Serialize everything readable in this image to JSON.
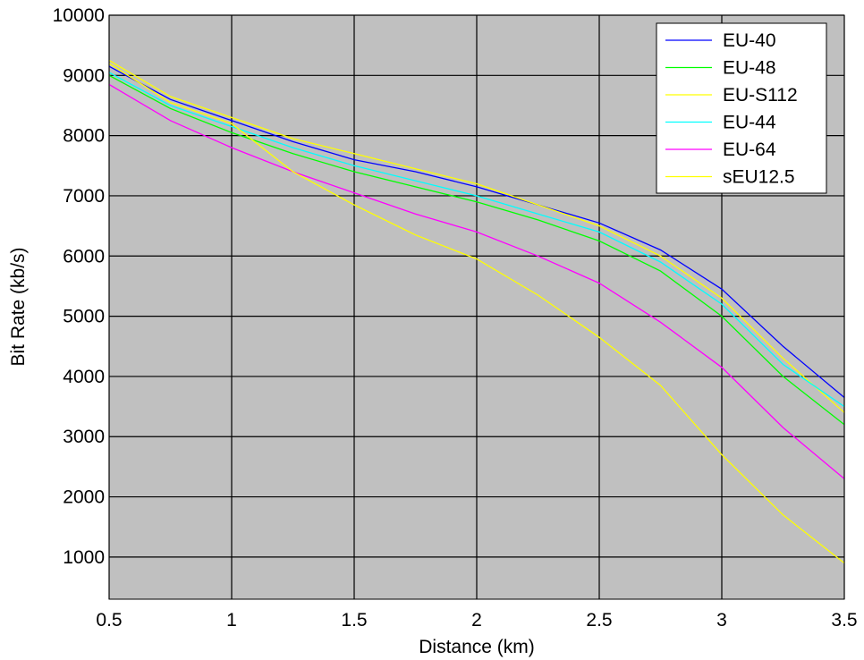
{
  "chart_data": {
    "type": "line",
    "title": "",
    "xlabel": "Distance (km)",
    "ylabel": "Bit Rate (kb/s)",
    "xlim": [
      0.5,
      3.5
    ],
    "ylim": [
      300,
      10000
    ],
    "xticks": [
      0.5,
      1,
      1.5,
      2,
      2.5,
      3,
      3.5
    ],
    "xtick_labels": [
      "0.5",
      "1",
      "1.5",
      "2",
      "2.5",
      "3",
      "3.5"
    ],
    "yticks": [
      1000,
      2000,
      3000,
      4000,
      5000,
      6000,
      7000,
      8000,
      9000,
      10000
    ],
    "ytick_labels": [
      "1000",
      "2000",
      "3000",
      "4000",
      "5000",
      "6000",
      "7000",
      "8000",
      "9000",
      "10000"
    ],
    "grid": true,
    "legend_position": "top-right",
    "background_color": "#c0c0c0",
    "x": [
      0.5,
      0.75,
      1,
      1.25,
      1.5,
      1.75,
      2,
      2.25,
      2.5,
      2.75,
      3,
      3.25,
      3.5
    ],
    "series": [
      {
        "name": "EU-40",
        "color": "#0000ff",
        "values": [
          9150,
          8600,
          8250,
          7900,
          7600,
          7400,
          7150,
          6850,
          6550,
          6100,
          5450,
          4500,
          3650
        ]
      },
      {
        "name": "EU-48",
        "color": "#00ff00",
        "values": [
          9000,
          8450,
          8050,
          7700,
          7400,
          7150,
          6900,
          6600,
          6250,
          5750,
          5000,
          4000,
          3200
        ]
      },
      {
        "name": "EU-S112",
        "color": "#ffff00",
        "values": [
          9250,
          8650,
          8300,
          7950,
          7700,
          7450,
          7200,
          6850,
          6500,
          6000,
          5300,
          4300,
          3400
        ]
      },
      {
        "name": "EU-44",
        "color": "#00ffff",
        "values": [
          9050,
          8500,
          8150,
          7800,
          7500,
          7250,
          7000,
          6700,
          6400,
          5900,
          5200,
          4200,
          3500
        ]
      },
      {
        "name": "EU-64",
        "color": "#ff00ff",
        "values": [
          8850,
          8250,
          7800,
          7400,
          7050,
          6700,
          6400,
          6000,
          5550,
          4900,
          4150,
          3150,
          2300
        ]
      },
      {
        "name": "sEU12.5",
        "color": "#ffff00",
        "values": [
          9200,
          8550,
          8200,
          7400,
          6850,
          6350,
          5950,
          5350,
          4650,
          3850,
          2700,
          1700,
          900
        ]
      }
    ]
  }
}
